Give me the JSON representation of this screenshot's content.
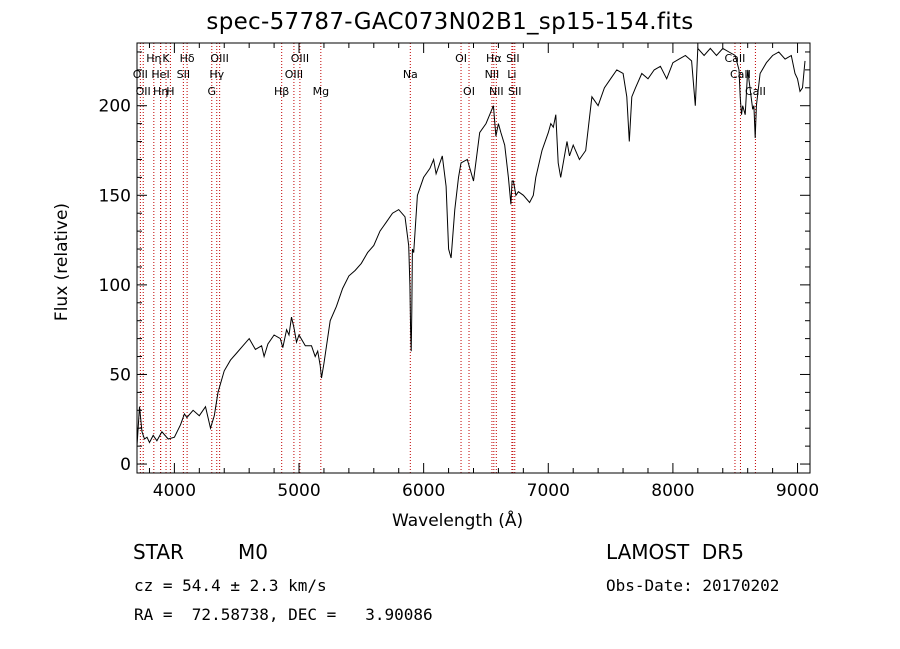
{
  "title": "spec-57787-GAC073N02B1_sp15-154.fits",
  "info": {
    "class_label": "STAR",
    "subclass": "M0",
    "survey": "LAMOST  DR5",
    "cz": "cz = 54.4 ± 2.3 km/s",
    "obs_date": "Obs-Date: 20170202",
    "coords": "RA =  72.58738, DEC =   3.90086"
  },
  "colors": {
    "line_marker": "#c00000",
    "spectrum": "#000000",
    "axes": "#000000"
  },
  "chart_data": {
    "type": "line",
    "title": "spec-57787-GAC073N02B1_sp15-154.fits",
    "xlabel": "Wavelength (Å)",
    "ylabel": "Flux (relative)",
    "xlim": [
      3700,
      9100
    ],
    "ylim": [
      -5,
      235
    ],
    "xticks": [
      4000,
      5000,
      6000,
      7000,
      8000,
      9000
    ],
    "yticks": [
      0,
      50,
      100,
      150,
      200
    ],
    "grid": false,
    "series": [
      {
        "x": [
          3700,
          3720,
          3740,
          3760,
          3780,
          3800,
          3830,
          3860,
          3900,
          3950,
          4000,
          4050,
          4080,
          4100,
          4150,
          4200,
          4250,
          4290,
          4320,
          4350,
          4400,
          4450,
          4500,
          4550,
          4600,
          4650,
          4700,
          4720,
          4750,
          4800,
          4850,
          4870,
          4900,
          4920,
          4940,
          4960,
          4980,
          5000,
          5050,
          5100,
          5130,
          5150,
          5170,
          5180,
          5200,
          5250,
          5300,
          5350,
          5400,
          5450,
          5500,
          5550,
          5600,
          5650,
          5700,
          5750,
          5800,
          5850,
          5880,
          5890,
          5895,
          5900,
          5905,
          5910,
          5920,
          5950,
          6000,
          6050,
          6080,
          6100,
          6150,
          6180,
          6200,
          6220,
          6250,
          6280,
          6300,
          6350,
          6400,
          6450,
          6500,
          6530,
          6560,
          6580,
          6600,
          6620,
          6650,
          6680,
          6700,
          6710,
          6720,
          6740,
          6760,
          6800,
          6850,
          6880,
          6900,
          6950,
          7000,
          7020,
          7040,
          7060,
          7080,
          7100,
          7150,
          7170,
          7200,
          7250,
          7300,
          7350,
          7400,
          7450,
          7500,
          7550,
          7600,
          7630,
          7650,
          7670,
          7700,
          7750,
          7800,
          7850,
          7900,
          7950,
          8000,
          8050,
          8100,
          8150,
          8180,
          8200,
          8250,
          8300,
          8350,
          8400,
          8450,
          8500,
          8530,
          8540,
          8550,
          8560,
          8580,
          8600,
          8640,
          8650,
          8660,
          8670,
          8700,
          8750,
          8800,
          8850,
          8900,
          8950,
          8980,
          9000,
          9020,
          9040,
          9060
        ],
        "y": [
          10,
          32,
          18,
          14,
          15,
          12,
          16,
          13,
          18,
          14,
          15,
          22,
          28,
          26,
          30,
          27,
          32,
          20,
          27,
          40,
          52,
          58,
          62,
          66,
          70,
          64,
          66,
          60,
          67,
          72,
          70,
          65,
          75,
          72,
          82,
          76,
          68,
          72,
          66,
          66,
          60,
          63,
          55,
          48,
          56,
          80,
          88,
          98,
          105,
          108,
          112,
          118,
          122,
          130,
          135,
          140,
          142,
          138,
          122,
          100,
          75,
          63,
          85,
          120,
          118,
          150,
          160,
          165,
          170,
          162,
          172,
          155,
          120,
          115,
          142,
          160,
          168,
          170,
          158,
          185,
          190,
          195,
          200,
          183,
          190,
          185,
          178,
          160,
          145,
          158,
          158,
          150,
          152,
          150,
          146,
          150,
          160,
          175,
          185,
          190,
          188,
          195,
          168,
          160,
          180,
          172,
          178,
          170,
          175,
          205,
          200,
          210,
          215,
          220,
          218,
          205,
          180,
          205,
          210,
          218,
          215,
          220,
          222,
          215,
          224,
          226,
          228,
          225,
          200,
          232,
          228,
          232,
          228,
          232,
          230,
          228,
          220,
          205,
          195,
          200,
          195,
          220,
          198,
          200,
          182,
          200,
          218,
          224,
          228,
          230,
          226,
          228,
          218,
          215,
          208,
          210,
          225
        ]
      }
    ],
    "line_markers": [
      {
        "wavelength": 3727,
        "label": "OII",
        "row": 2
      },
      {
        "wavelength": 3750,
        "label": "OII",
        "row": 3
      },
      {
        "wavelength": 3835,
        "label": "Hη",
        "row": 1
      },
      {
        "wavelength": 3889,
        "label": "HeI",
        "row": 2
      },
      {
        "wavelength": 3890,
        "label": "Hη",
        "row": 3
      },
      {
        "wavelength": 3933,
        "label": "K",
        "row": 1
      },
      {
        "wavelength": 3968,
        "label": "H",
        "row": 3
      },
      {
        "wavelength": 4072,
        "label": "SII",
        "row": 2
      },
      {
        "wavelength": 4102,
        "label": "Hδ",
        "row": 1
      },
      {
        "wavelength": 4300,
        "label": "G",
        "row": 3
      },
      {
        "wavelength": 4340,
        "label": "Hγ",
        "row": 2
      },
      {
        "wavelength": 4363,
        "label": "OIII",
        "row": 1
      },
      {
        "wavelength": 4861,
        "label": "Hβ",
        "row": 3
      },
      {
        "wavelength": 4959,
        "label": "OIII",
        "row": 2
      },
      {
        "wavelength": 5007,
        "label": "OIII",
        "row": 1
      },
      {
        "wavelength": 5175,
        "label": "Mg",
        "row": 3
      },
      {
        "wavelength": 5893,
        "label": "Na",
        "row": 2
      },
      {
        "wavelength": 6300,
        "label": "OI",
        "row": 1
      },
      {
        "wavelength": 6364,
        "label": "OI",
        "row": 3
      },
      {
        "wavelength": 6548,
        "label": "NII",
        "row": 2
      },
      {
        "wavelength": 6563,
        "label": "Hα",
        "row": 1
      },
      {
        "wavelength": 6583,
        "label": "NII",
        "row": 3
      },
      {
        "wavelength": 6708,
        "label": "Li",
        "row": 2
      },
      {
        "wavelength": 6716,
        "label": "SII",
        "row": 1
      },
      {
        "wavelength": 6731,
        "label": "SII",
        "row": 3
      },
      {
        "wavelength": 8498,
        "label": "CaII",
        "row": 1
      },
      {
        "wavelength": 8542,
        "label": "CaII",
        "row": 2
      },
      {
        "wavelength": 8662,
        "label": "CaII",
        "row": 3
      }
    ]
  }
}
